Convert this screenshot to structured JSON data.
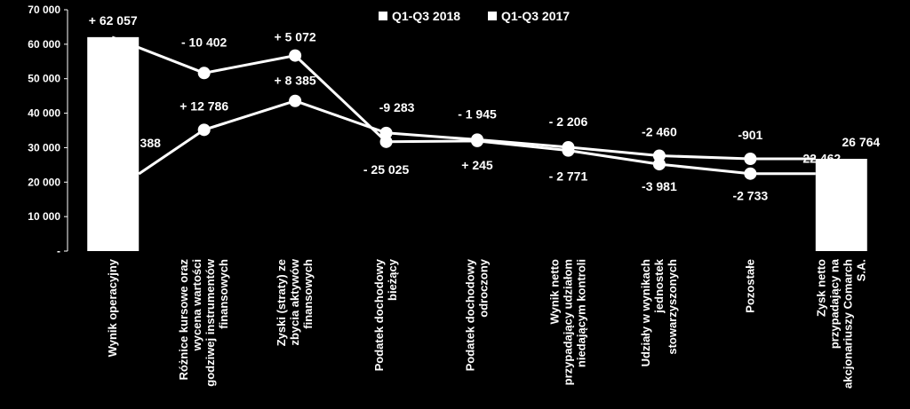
{
  "chart_data": {
    "type": "line",
    "title": "",
    "xlabel": "",
    "ylabel": "",
    "ylim": [
      0,
      70000
    ],
    "yticks": [
      "-",
      "10 000",
      "20 000",
      "30 000",
      "40 000",
      "50 000",
      "60 000",
      "70 000"
    ],
    "grid": false,
    "legend_position": "top",
    "colors": {
      "background": "#000000",
      "foreground": "#ffffff"
    },
    "categories": [
      "Wynik operacyjny",
      "Różnice kursowe oraz wycena wartości godziwej instrumentów finansowych",
      "Zyski (straty) ze zbycia aktywów finansowych",
      "Podatek dochodowy bieżący",
      "Podatek dochodowy odroczony",
      "Wynik netto przypadający udziałom niedającym kontroli",
      "Udziały w wynikach jednostek stowarzyszonych",
      "Pozostałe",
      "Zysk netto przypadający na akcjonariuszy Comarch S.A."
    ],
    "series": [
      {
        "name": "Q1-Q3 2018",
        "values": [
          62057,
          51655,
          56727,
          31702,
          31947,
          29176,
          25195,
          22462,
          22462
        ],
        "labels": [
          "+ 62 057",
          "- 10 402",
          "+ 5 072",
          "- 25 025",
          "+ 245",
          "-  2 771",
          "-3 981",
          "-2 733",
          "22 462"
        ]
      },
      {
        "name": "Q1-Q3 2017",
        "values": [
          22388,
          35174,
          43559,
          34276,
          32331,
          30125,
          27665,
          26764,
          26764
        ],
        "labels": [
          "- 22 388",
          "+ 12 786",
          "+ 8 385",
          "-9 283",
          "- 1 945",
          "- 2 206",
          "-2 460",
          "-901",
          "26 764"
        ]
      }
    ]
  }
}
